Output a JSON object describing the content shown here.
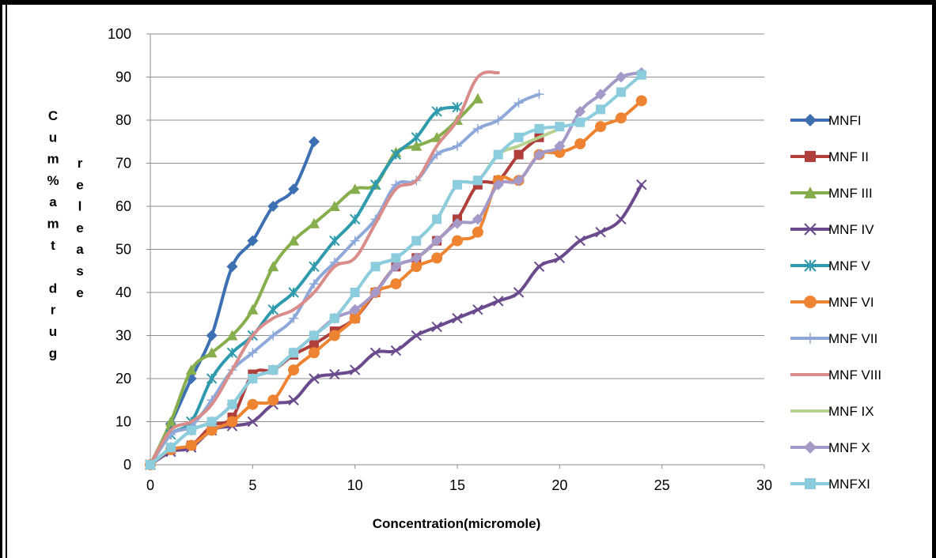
{
  "chart_data": {
    "type": "line",
    "title": "",
    "xlabel": "Concentration(micromole)",
    "ylabel_line1": "Cum%amt drug",
    "ylabel_line2": "release",
    "xlim": [
      0,
      30
    ],
    "ylim": [
      0,
      100
    ],
    "xticks": [
      0,
      5,
      10,
      15,
      20,
      25,
      30
    ],
    "yticks": [
      0,
      10,
      20,
      30,
      40,
      50,
      60,
      70,
      80,
      90,
      100
    ],
    "grid": "horizontal",
    "legend_position": "right",
    "series": [
      {
        "name": "MNFI",
        "color": "#3D6FB3",
        "marker": "diamond",
        "x": [
          0,
          1,
          2,
          3,
          4,
          5,
          6,
          7,
          8
        ],
        "y": [
          0,
          9.5,
          20,
          30,
          46,
          52,
          60,
          64,
          75
        ]
      },
      {
        "name": "MNF II",
        "color": "#B03E3B",
        "marker": "square",
        "x": [
          0,
          1,
          2,
          3,
          4,
          5,
          6,
          7,
          8,
          9,
          10,
          11,
          12,
          13,
          14,
          15,
          16,
          17,
          18,
          19
        ],
        "y": [
          0,
          3.5,
          4.5,
          9,
          11,
          21,
          22,
          25.5,
          28,
          31,
          34,
          40,
          46,
          48,
          52,
          57,
          65,
          66,
          72,
          76
        ]
      },
      {
        "name": "MNF III",
        "color": "#86AE4C",
        "marker": "triangle",
        "x": [
          0,
          1,
          2,
          3,
          4,
          5,
          6,
          7,
          8,
          9,
          10,
          11,
          12,
          13,
          14,
          15,
          16
        ],
        "y": [
          0,
          10,
          22,
          26,
          30,
          36,
          46,
          52,
          56,
          60,
          64,
          65,
          72.5,
          74,
          76,
          80,
          85
        ]
      },
      {
        "name": "MNF IV",
        "color": "#6A4A8C",
        "marker": "x",
        "x": [
          0,
          1,
          2,
          3,
          4,
          5,
          6,
          7,
          8,
          9,
          10,
          11,
          12,
          13,
          14,
          15,
          16,
          17,
          18,
          19,
          20,
          21,
          22,
          23,
          24
        ],
        "y": [
          0,
          3,
          4,
          8,
          9,
          10,
          14,
          15,
          20,
          21,
          22,
          26,
          26.5,
          30,
          32,
          34,
          36,
          38,
          40,
          46,
          48,
          52,
          54,
          57,
          65
        ]
      },
      {
        "name": "MNF V",
        "color": "#2F9AAE",
        "marker": "star",
        "x": [
          0,
          1,
          2,
          3,
          4,
          5,
          6,
          7,
          8,
          9,
          10,
          11,
          12,
          13,
          14,
          15
        ],
        "y": [
          0,
          7,
          10,
          20,
          26,
          30,
          36,
          40,
          46,
          52,
          57,
          65,
          72,
          76,
          82,
          83
        ]
      },
      {
        "name": "MNF VI",
        "color": "#EE8431",
        "marker": "circle",
        "x": [
          0,
          1,
          2,
          3,
          4,
          5,
          6,
          7,
          8,
          9,
          10,
          11,
          12,
          13,
          14,
          15,
          16,
          17,
          18,
          19,
          20,
          21,
          22,
          23,
          24
        ],
        "y": [
          0,
          3.5,
          4.5,
          8,
          10,
          14,
          15,
          22,
          26,
          30,
          34,
          40,
          42,
          46,
          48,
          52,
          54,
          66,
          66,
          72,
          72.5,
          74.5,
          78.5,
          80.5,
          84.5
        ]
      },
      {
        "name": "MNF VII",
        "color": "#8EA9D9",
        "marker": "plus",
        "x": [
          0,
          1,
          2,
          3,
          4,
          5,
          6,
          7,
          8,
          9,
          10,
          11,
          12,
          13,
          14,
          15,
          16,
          17,
          18,
          19
        ],
        "y": [
          0,
          7,
          9,
          15,
          22,
          26,
          30,
          34,
          42,
          47,
          52,
          57,
          65,
          66,
          72,
          74,
          78,
          80,
          84,
          86
        ]
      },
      {
        "name": "MNF VIII",
        "color": "#D98C8A",
        "marker": "none",
        "x": [
          0,
          1,
          2,
          3,
          4,
          5,
          6,
          7,
          8,
          9,
          10,
          11,
          12,
          13,
          14,
          15,
          16,
          17
        ],
        "y": [
          0,
          8,
          10,
          14,
          22,
          30,
          34,
          36,
          40,
          46,
          48,
          56,
          64,
          66,
          74,
          80,
          90,
          91
        ]
      },
      {
        "name": "MNF IX",
        "color": "#B6D28F",
        "marker": "none",
        "x": [
          0,
          1,
          2,
          3,
          4,
          5,
          6,
          7,
          8,
          9,
          10,
          11,
          12,
          13,
          14,
          15,
          16,
          17,
          18,
          19,
          20
        ],
        "y": [
          0,
          4,
          8,
          10,
          14,
          20,
          22,
          26,
          30,
          34,
          40,
          46,
          48,
          52,
          57,
          65,
          66,
          72,
          74,
          76,
          78
        ]
      },
      {
        "name": "MNF X",
        "color": "#A599C8",
        "marker": "diamond",
        "x": [
          0,
          1,
          2,
          3,
          4,
          5,
          6,
          7,
          8,
          9,
          10,
          11,
          12,
          13,
          14,
          15,
          16,
          17,
          18,
          19,
          20,
          21,
          22,
          23,
          24
        ],
        "y": [
          0,
          4,
          8,
          10,
          14,
          20,
          22,
          26,
          30,
          34,
          36,
          40,
          46,
          48,
          52,
          56,
          57,
          65,
          66,
          72,
          74,
          82,
          86,
          90,
          91
        ]
      },
      {
        "name": "MNFXI",
        "color": "#8BCCDD",
        "marker": "square",
        "x": [
          0,
          1,
          2,
          3,
          4,
          5,
          6,
          7,
          8,
          9,
          10,
          11,
          12,
          13,
          14,
          15,
          16,
          17,
          18,
          19,
          20,
          21,
          22,
          23,
          24
        ],
        "y": [
          0,
          4,
          8,
          10,
          14,
          20,
          22,
          26,
          30,
          34,
          40,
          46,
          48,
          52,
          57,
          65,
          66,
          72,
          76,
          78,
          78.5,
          79.5,
          82.5,
          86.5,
          90.5
        ]
      }
    ]
  }
}
